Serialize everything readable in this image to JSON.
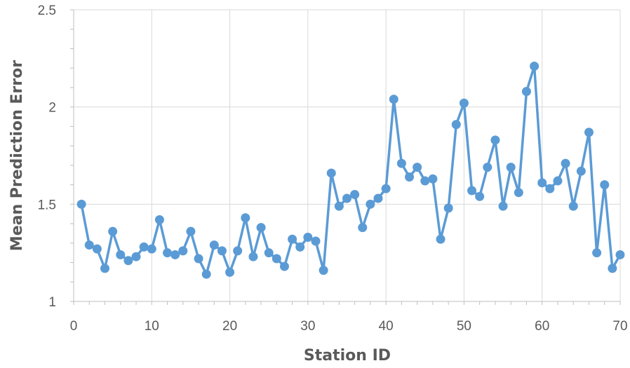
{
  "chart_data": {
    "type": "line",
    "title": "",
    "xlabel": "Station ID",
    "ylabel": "Mean Prediction Error",
    "xlim": [
      0,
      70
    ],
    "ylim": [
      1,
      2.5
    ],
    "x_ticks": [
      "0",
      "10",
      "20",
      "30",
      "40",
      "50",
      "60",
      "70"
    ],
    "y_ticks": [
      "1",
      "1.5",
      "2",
      "2.5"
    ],
    "grid": true,
    "legend": "none",
    "series": [
      {
        "color": "#5B9BD5",
        "marker": "circle",
        "x": [
          1,
          2,
          3,
          4,
          5,
          6,
          7,
          8,
          9,
          10,
          11,
          12,
          13,
          14,
          15,
          16,
          17,
          18,
          19,
          20,
          21,
          22,
          23,
          24,
          25,
          26,
          27,
          28,
          29,
          30,
          31,
          32,
          33,
          34,
          35,
          36,
          37,
          38,
          39,
          40,
          41,
          42,
          43,
          44,
          45,
          46,
          47,
          48,
          49,
          50,
          51,
          52,
          53,
          54,
          55,
          56,
          57,
          58,
          59,
          60,
          61,
          62,
          63,
          64,
          65,
          66,
          67,
          68,
          69,
          70
        ],
        "y": [
          1.5,
          1.29,
          1.27,
          1.17,
          1.36,
          1.24,
          1.21,
          1.23,
          1.28,
          1.27,
          1.42,
          1.25,
          1.24,
          1.26,
          1.36,
          1.22,
          1.14,
          1.29,
          1.26,
          1.15,
          1.26,
          1.43,
          1.23,
          1.38,
          1.25,
          1.22,
          1.18,
          1.32,
          1.28,
          1.33,
          1.31,
          1.16,
          1.66,
          1.49,
          1.53,
          1.55,
          1.38,
          1.5,
          1.53,
          1.58,
          2.04,
          1.71,
          1.64,
          1.69,
          1.62,
          1.63,
          1.32,
          1.48,
          1.91,
          2.02,
          1.57,
          1.54,
          1.69,
          1.83,
          1.49,
          1.69,
          1.56,
          2.08,
          2.21,
          1.61,
          1.58,
          1.62,
          1.71,
          1.49,
          1.67,
          1.87,
          1.25,
          1.6,
          1.17,
          1.24
        ]
      }
    ]
  }
}
